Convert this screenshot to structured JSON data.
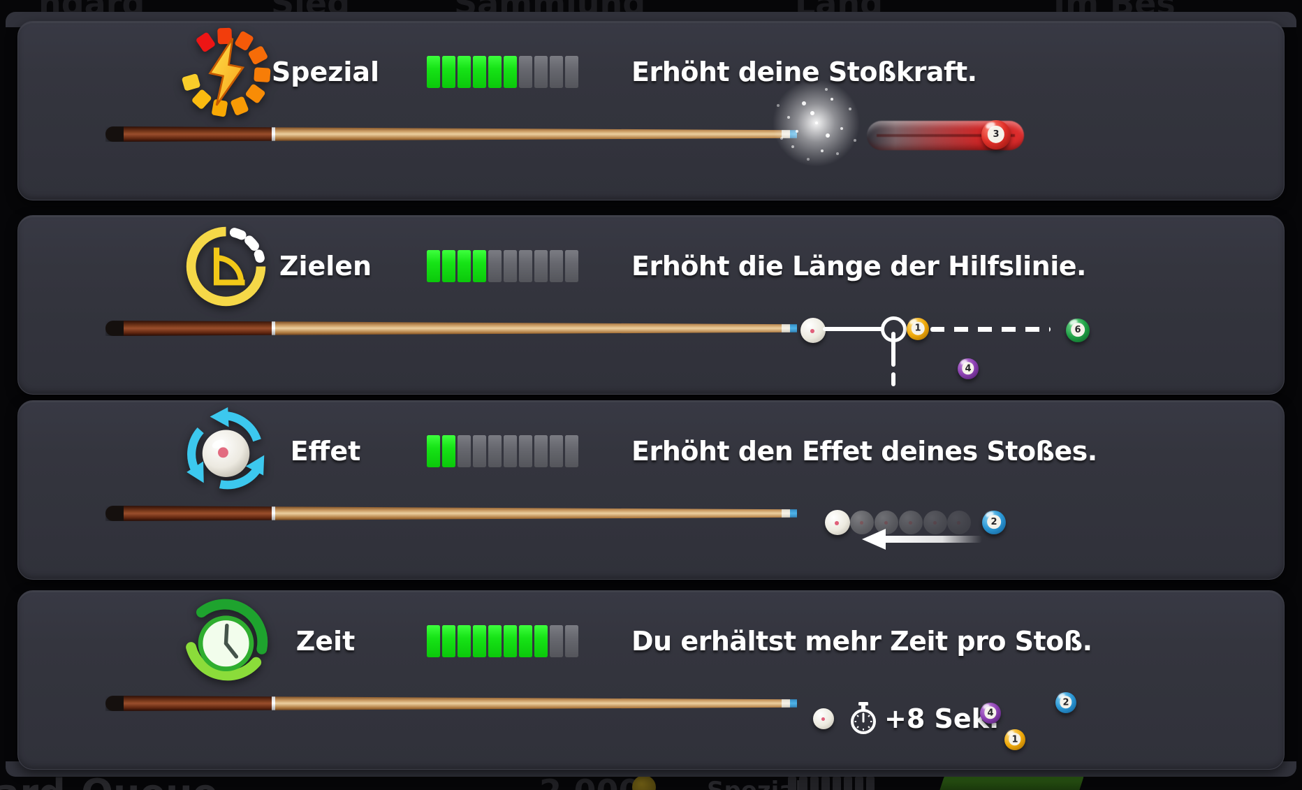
{
  "colors": {
    "panel_background": "#34353e",
    "segment_on": "#16e316",
    "segment_off": "#67686f",
    "text": "#ffffff"
  },
  "background_fragments": {
    "top": [
      "ndard",
      "Sieg",
      "Sammlung",
      "Land",
      "Im Bes"
    ],
    "bottom_left": "ard-Queue",
    "bottom_coins": "2.000",
    "bottom_stat": "Spezial"
  },
  "panels": [
    {
      "id": "spezial",
      "label": "Spezial",
      "description": "Erhöht deine Stoßkraft.",
      "level": 6,
      "segments_total": 10,
      "icon": "power-gauge-icon",
      "illustration": {
        "type": "power-impact",
        "moving_ball_number": "3"
      }
    },
    {
      "id": "zielen",
      "label": "Zielen",
      "description": "Erhöht die Länge der Hilfslinie.",
      "level": 4,
      "segments_total": 10,
      "icon": "aim-protractor-icon",
      "illustration": {
        "type": "aim-guideline",
        "object_ball_number": "1",
        "target_ball_number": "6",
        "side_ball_number": "4"
      }
    },
    {
      "id": "effet",
      "label": "Effet",
      "description": "Erhöht den Effet deines Stoßes.",
      "level": 2,
      "segments_total": 10,
      "icon": "spin-ball-icon",
      "illustration": {
        "type": "backspin-trail",
        "target_ball_number": "2"
      }
    },
    {
      "id": "zeit",
      "label": "Zeit",
      "description": "Du erhältst mehr Zeit pro Stoß.",
      "level": 8,
      "segments_total": 10,
      "icon": "time-clock-icon",
      "illustration": {
        "type": "extra-time",
        "bonus_label": "+8 Sek.",
        "ball_numbers": [
          "4",
          "1",
          "2"
        ]
      }
    }
  ]
}
